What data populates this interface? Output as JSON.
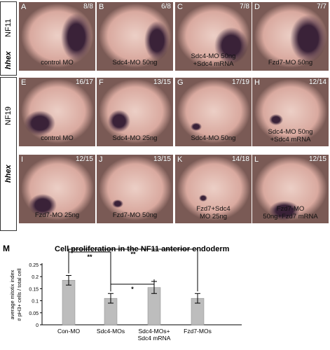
{
  "side_labels": {
    "row1_stage": "NF11",
    "row1_gene": "hhex",
    "row2_stage": "NF19",
    "row3_gene": "hhex"
  },
  "panels": [
    {
      "letter": "A",
      "ratio": "8/8",
      "label": "control MO"
    },
    {
      "letter": "B",
      "ratio": "6/8",
      "label": "Sdc4-MO 50ng"
    },
    {
      "letter": "C",
      "ratio": "7/8",
      "label": "Sdc4-MO 50ng\n+Sdc4 mRNA"
    },
    {
      "letter": "D",
      "ratio": "7/7",
      "label": "Fzd7-MO 50ng"
    },
    {
      "letter": "E",
      "ratio": "16/17",
      "label": "control MO"
    },
    {
      "letter": "F",
      "ratio": "13/15",
      "label": "Sdc4-MO 25ng"
    },
    {
      "letter": "G",
      "ratio": "17/19",
      "label": "Sdc4-MO 50ng"
    },
    {
      "letter": "H",
      "ratio": "12/14",
      "label": "Sdc4-MO 50ng\n+Sdc4 mRNA"
    },
    {
      "letter": "I",
      "ratio": "12/15",
      "label": "Fzd7-MO 25ng"
    },
    {
      "letter": "J",
      "ratio": "13/15",
      "label": "Fzd7-MO 50ng"
    },
    {
      "letter": "K",
      "ratio": "14/18",
      "label": "Fzd7+Sdc4\nMO 25ng"
    },
    {
      "letter": "L",
      "ratio": "12/15",
      "label": "Fzd7-MO\n50ng+Fzd7 mRNA"
    }
  ],
  "panel_m": {
    "letter": "M",
    "title": "Cell proliferation in the NF11 anterior endoderm"
  },
  "chart_data": {
    "type": "bar",
    "title": "Cell proliferation in the NF11 anterior endoderm",
    "ylabel": "average mitotix index\n# pH3+ cells / total cell",
    "xlabel": "",
    "categories": [
      "Con-MO",
      "Sdc4-MOs",
      "Sdc4-MOs+\nSdc4 mRNA",
      "Fzd7-MOs"
    ],
    "values": [
      0.185,
      0.11,
      0.155,
      0.11
    ],
    "errors": [
      0.02,
      0.02,
      0.025,
      0.02
    ],
    "yticks": [
      0,
      0.05,
      0.1,
      0.15,
      0.2,
      0.25
    ],
    "ylim": [
      0,
      0.25
    ],
    "grid": false,
    "bar_color": "#bdbdbd",
    "significance": [
      {
        "from": 0,
        "to": 1,
        "label": "**"
      },
      {
        "from": 1,
        "to": 2,
        "label": "*"
      },
      {
        "from": 0,
        "to": 3,
        "label": "**"
      }
    ]
  },
  "colors": {
    "embryo_base": "#d9a99f",
    "embryo_light": "#eccfc6",
    "stain": "#3a2238",
    "bg_dark": "#7a5a55"
  }
}
